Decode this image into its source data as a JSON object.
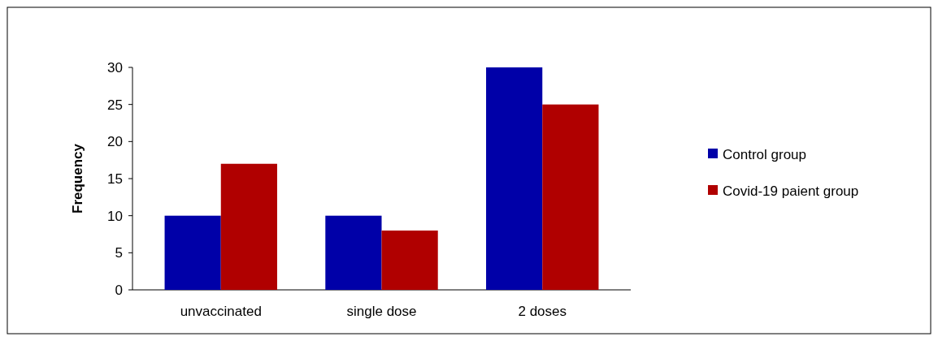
{
  "chart_data": {
    "type": "bar",
    "ylabel": "Frequency",
    "categories": [
      "unvaccinated",
      "single dose",
      "2 doses"
    ],
    "series": [
      {
        "name": "Control group",
        "color": "#0000a8",
        "values": [
          10,
          10,
          30
        ]
      },
      {
        "name": "Covid-19 paient group",
        "color": "#b00000",
        "values": [
          17,
          8,
          25
        ]
      }
    ],
    "ylim": [
      0,
      30
    ],
    "yticks": [
      0,
      5,
      10,
      15,
      20,
      25,
      30
    ],
    "legend": "right",
    "grid": false
  }
}
